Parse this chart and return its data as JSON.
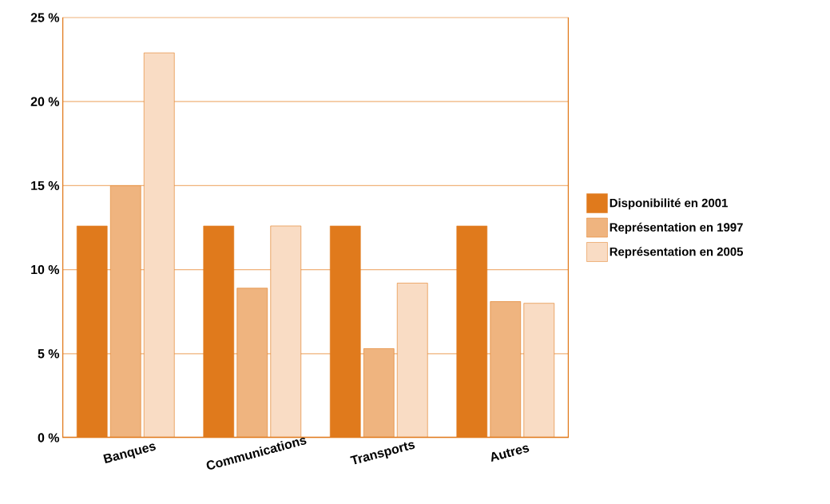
{
  "chart_data": {
    "type": "bar",
    "categories": [
      "Banques",
      "Communications",
      "Transports",
      "Autres"
    ],
    "series": [
      {
        "name": "Disponibilité en 2001",
        "color": "#e07a1c",
        "values": [
          12.6,
          12.6,
          12.6,
          12.6
        ]
      },
      {
        "name": "Représentation en 1997",
        "color": "#efb47f",
        "values": [
          15.0,
          8.9,
          5.3,
          8.1
        ]
      },
      {
        "name": "Représentation en 2005",
        "color": "#f9dcc4",
        "values": [
          22.9,
          12.6,
          9.2,
          8.0
        ]
      }
    ],
    "ylim": [
      0,
      25
    ],
    "yticks": [
      {
        "value": 0,
        "label": "0 %"
      },
      {
        "value": 5,
        "label": "5 %"
      },
      {
        "value": 10,
        "label": "10 %"
      },
      {
        "value": 15,
        "label": "15 %"
      },
      {
        "value": 20,
        "label": "20 %"
      },
      {
        "value": 25,
        "label": "25 %"
      }
    ],
    "grid": "y",
    "legend": "right"
  }
}
